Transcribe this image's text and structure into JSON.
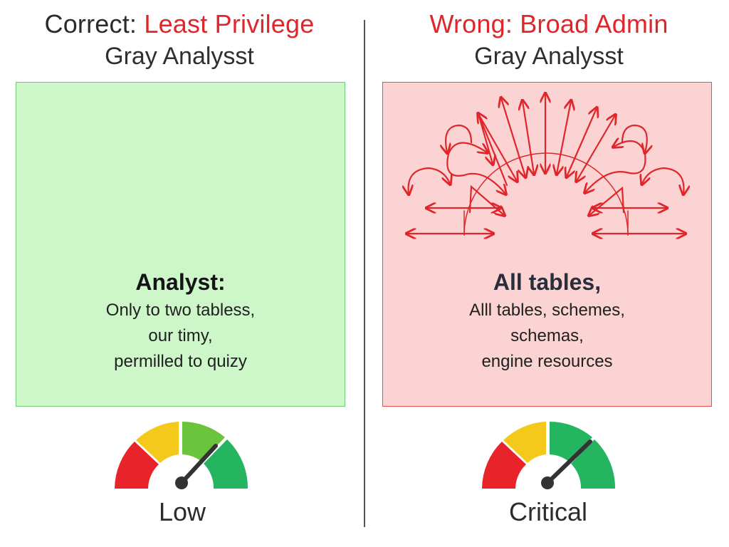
{
  "left": {
    "title_prefix": "Correct: ",
    "title_highlight": "Least Privilege",
    "subtitle": "Gray Analysst",
    "panel_heading": "Analyst:",
    "panel_lines": [
      "Only to two tabless,",
      "our timy,",
      "permilled to quizy"
    ],
    "gauge_label": "Low",
    "panel_color": "#cdf7c9",
    "border_color": "#6fcc78"
  },
  "right": {
    "title": "Wrong: Broad Admin",
    "subtitle": "Gray Analysst",
    "panel_heading": "All tables,",
    "panel_lines": [
      "Alll tables, schemes,",
      "schemas,",
      "engine resources"
    ],
    "gauge_label": "Critical",
    "panel_color": "#fbd3d3",
    "border_color": "#ef4b4b",
    "arrow_color": "#e0262a"
  },
  "gauge_colors": {
    "red": "#e8232a",
    "yellow": "#f4c91c",
    "light_green": "#6cc43c",
    "green": "#25b460",
    "needle": "#333333"
  }
}
